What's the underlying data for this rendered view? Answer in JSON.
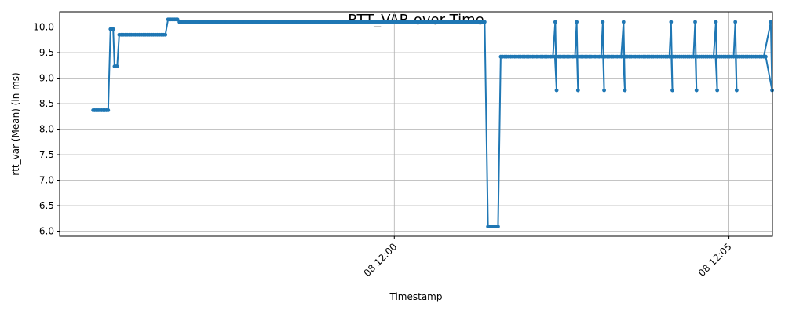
{
  "chart_data": {
    "type": "line",
    "title": "RTT_VAR over Time",
    "xlabel": "Timestamp",
    "ylabel": "rtt_var (Mean) (in ms)",
    "ylim": [
      5.9,
      10.3
    ],
    "y_ticks": [
      6.0,
      6.5,
      7.0,
      7.5,
      8.0,
      8.5,
      9.0,
      9.5,
      10.0
    ],
    "y_tick_labels": [
      "6.0",
      "6.5",
      "7.0",
      "7.5",
      "8.0",
      "8.5",
      "9.0",
      "9.5",
      "10.0"
    ],
    "x_unit": "minutes after 08 11:55",
    "x_range": [
      0,
      10.65
    ],
    "x_ticks": [
      5,
      10
    ],
    "x_tick_labels": [
      "08 12:00",
      "08 12:05"
    ],
    "grid": true,
    "line_color": "#1f77b4",
    "series": [
      {
        "segments": [
          {
            "x0": 0.5,
            "x1": 0.73,
            "step": 0.025,
            "y": 8.37
          },
          {
            "x0": 0.76,
            "x1": 0.8,
            "step": 0.02,
            "y": 9.96
          },
          {
            "x0": 0.82,
            "x1": 0.86,
            "step": 0.02,
            "y": 9.23
          },
          {
            "x0": 0.89,
            "x1": 1.58,
            "step": 0.03,
            "y": 9.85
          },
          {
            "x0": 1.62,
            "x1": 1.76,
            "step": 0.02,
            "y": 10.15
          },
          {
            "x0": 1.79,
            "x1": 6.36,
            "step": 0.03,
            "y": 10.1
          },
          {
            "x0": 6.4,
            "x1": 6.55,
            "step": 0.025,
            "y": 6.09
          },
          {
            "x0": 6.59,
            "x1": 10.57,
            "step": 0.03,
            "y": 9.42
          }
        ],
        "spikes": [
          7.41,
          7.73,
          8.12,
          8.43,
          9.14,
          9.5,
          9.81,
          10.1,
          10.63
        ],
        "spike_high": 10.1,
        "spike_low": 8.76
      }
    ]
  }
}
